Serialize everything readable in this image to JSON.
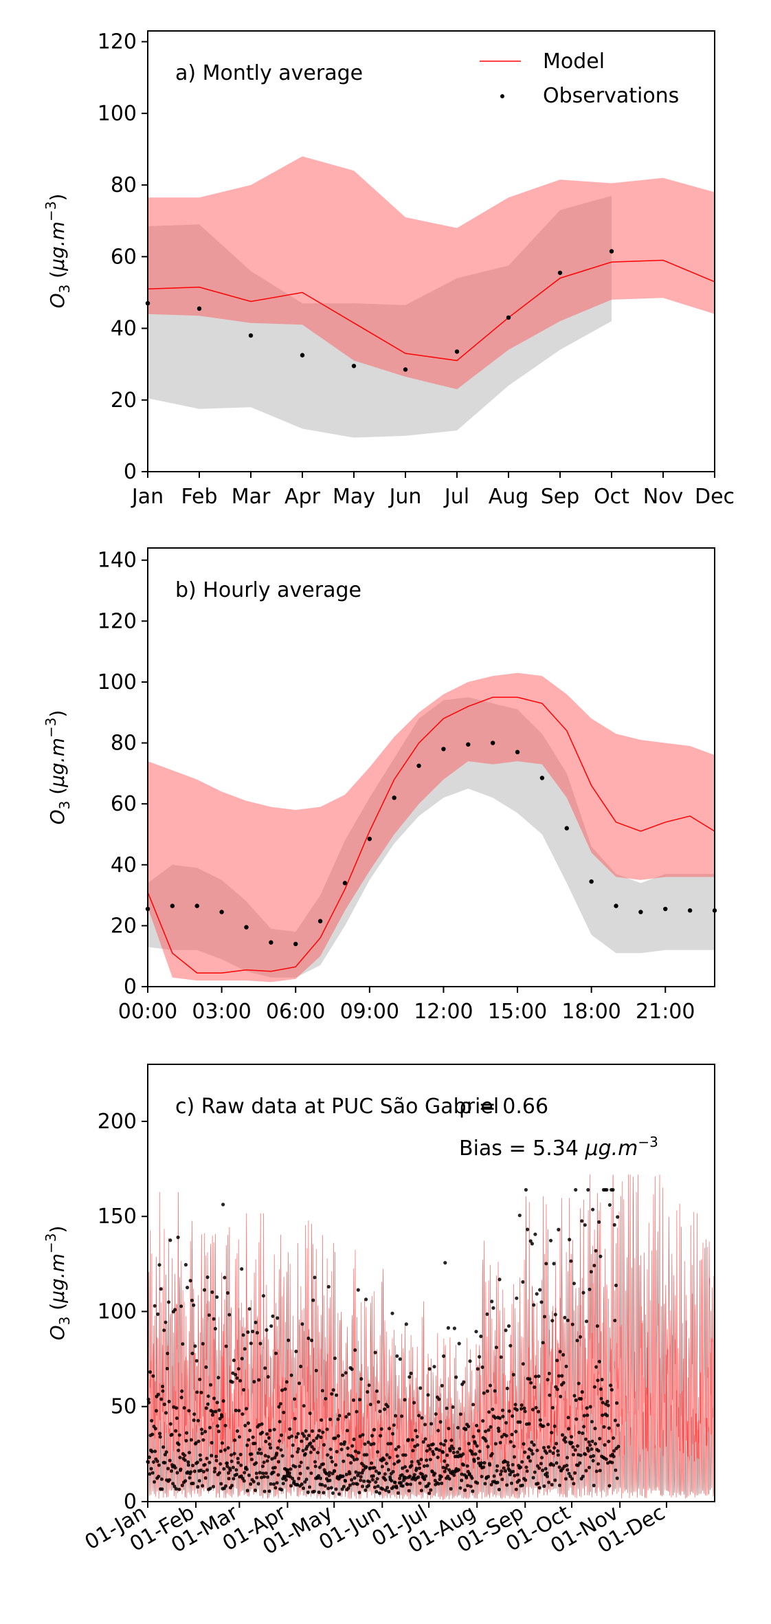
{
  "chart_data": [
    {
      "type": "line",
      "panel_label": "a) Montly average",
      "ylabel": "O3 (μg.m−3)",
      "ylim": [
        0,
        123
      ],
      "yticks": [
        0,
        20,
        40,
        60,
        80,
        100,
        120
      ],
      "categories": [
        "Jan",
        "Feb",
        "Mar",
        "Apr",
        "May",
        "Jun",
        "Jul",
        "Aug",
        "Sep",
        "Oct",
        "Nov",
        "Dec"
      ],
      "legend": {
        "placement": "top-right",
        "entries": [
          "Model",
          "Observations"
        ]
      },
      "series": [
        {
          "name": "Model",
          "kind": "line",
          "color": "#ff0000",
          "values": [
            51,
            51.5,
            47.5,
            50,
            41.5,
            33,
            31,
            43,
            54,
            58.5,
            59,
            53
          ],
          "band_lower": [
            44,
            43.5,
            41.5,
            41,
            31,
            26.5,
            23,
            34,
            42,
            48,
            48.5,
            44
          ],
          "band_upper": [
            76.5,
            76.5,
            80,
            88,
            84,
            71,
            68,
            76.5,
            81.5,
            80.5,
            82,
            78
          ]
        },
        {
          "name": "Observations",
          "kind": "scatter",
          "color": "#000000",
          "values": [
            47,
            45.5,
            38,
            32.5,
            29.5,
            28.5,
            33.5,
            43,
            55.5,
            61.5,
            null,
            null
          ],
          "band_lower": [
            20.5,
            17.5,
            18,
            12,
            9.5,
            10,
            11.5,
            24,
            34,
            42
          ],
          "band_upper": [
            68.5,
            69,
            56,
            47,
            47,
            46.5,
            54,
            57.5,
            73,
            77
          ]
        }
      ]
    },
    {
      "type": "line",
      "panel_label": "b) Hourly average",
      "ylabel": "O3 (μg.m−3)",
      "ylim": [
        0,
        144
      ],
      "yticks": [
        0,
        20,
        40,
        60,
        80,
        100,
        120,
        140
      ],
      "xticks": [
        "00:00",
        "03:00",
        "06:00",
        "09:00",
        "12:00",
        "15:00",
        "18:00",
        "21:00"
      ],
      "hours": [
        0,
        1,
        2,
        3,
        4,
        5,
        6,
        7,
        8,
        9,
        10,
        11,
        12,
        13,
        14,
        15,
        16,
        17,
        18,
        19,
        20,
        21,
        22,
        23
      ],
      "series": [
        {
          "name": "Model",
          "kind": "line",
          "color": "#ff0000",
          "values": [
            31,
            11,
            4.5,
            4.5,
            5.5,
            5,
            6.5,
            16,
            32,
            51,
            68,
            80,
            88,
            92,
            95,
            95,
            93,
            84,
            66,
            54,
            51,
            54,
            56,
            51
          ],
          "band_lower": [
            26,
            3,
            2,
            2,
            2,
            1.5,
            2.5,
            10,
            25,
            38,
            50,
            60,
            68,
            74,
            73,
            74,
            73,
            62,
            44,
            36,
            35,
            36,
            36,
            36
          ],
          "band_upper": [
            74,
            71,
            68,
            64,
            61,
            59,
            58,
            59,
            63,
            72,
            82,
            90,
            96,
            100,
            102,
            103,
            102,
            96,
            88,
            83,
            81,
            80,
            79,
            76
          ]
        },
        {
          "name": "Observations",
          "kind": "scatter",
          "color": "#000000",
          "values": [
            25.5,
            26.5,
            26.5,
            24.5,
            19.5,
            14.5,
            14,
            21.5,
            34,
            48.5,
            62,
            72.5,
            78,
            79.5,
            80,
            77,
            68.5,
            52,
            34.5,
            26.5,
            24.5,
            25.5,
            25,
            25
          ],
          "band_lower": [
            13,
            12,
            12,
            9,
            5,
            3,
            3,
            7,
            20,
            35,
            47,
            56,
            62,
            65,
            62,
            57,
            50,
            34,
            17,
            11,
            11,
            12,
            12,
            12
          ],
          "band_upper": [
            34,
            40,
            39,
            35,
            28,
            19,
            18,
            30,
            48,
            62,
            75,
            88,
            94,
            95,
            93,
            91,
            83,
            70,
            46,
            37,
            34,
            37,
            37,
            37
          ]
        }
      ]
    },
    {
      "type": "scatter",
      "panel_label": "c) Raw data at PUC São Gabriel",
      "annotations": [
        "ρ = 0.66",
        "Bias = 5.34 μg.m−3"
      ],
      "ylabel": "O3 (μg.m−3)",
      "ylim": [
        0,
        230
      ],
      "yticks": [
        0,
        50,
        100,
        150,
        200
      ],
      "xticks": [
        "01-Jan",
        "01-Feb",
        "01-Mar",
        "01-Apr",
        "01-May",
        "01-Jun",
        "01-Jul",
        "01-Aug",
        "01-Sep",
        "01-Oct",
        "01-Nov",
        "01-Dec"
      ],
      "x_range_days": [
        0,
        365
      ],
      "series": [
        {
          "name": "Model",
          "kind": "line",
          "color": "#ff0000",
          "x_range_days": [
            0,
            365
          ],
          "max_value": 172
        },
        {
          "name": "Observations",
          "kind": "scatter",
          "color": "#000000",
          "x_range_days": [
            0,
            303
          ],
          "max_value": 164
        }
      ]
    }
  ]
}
